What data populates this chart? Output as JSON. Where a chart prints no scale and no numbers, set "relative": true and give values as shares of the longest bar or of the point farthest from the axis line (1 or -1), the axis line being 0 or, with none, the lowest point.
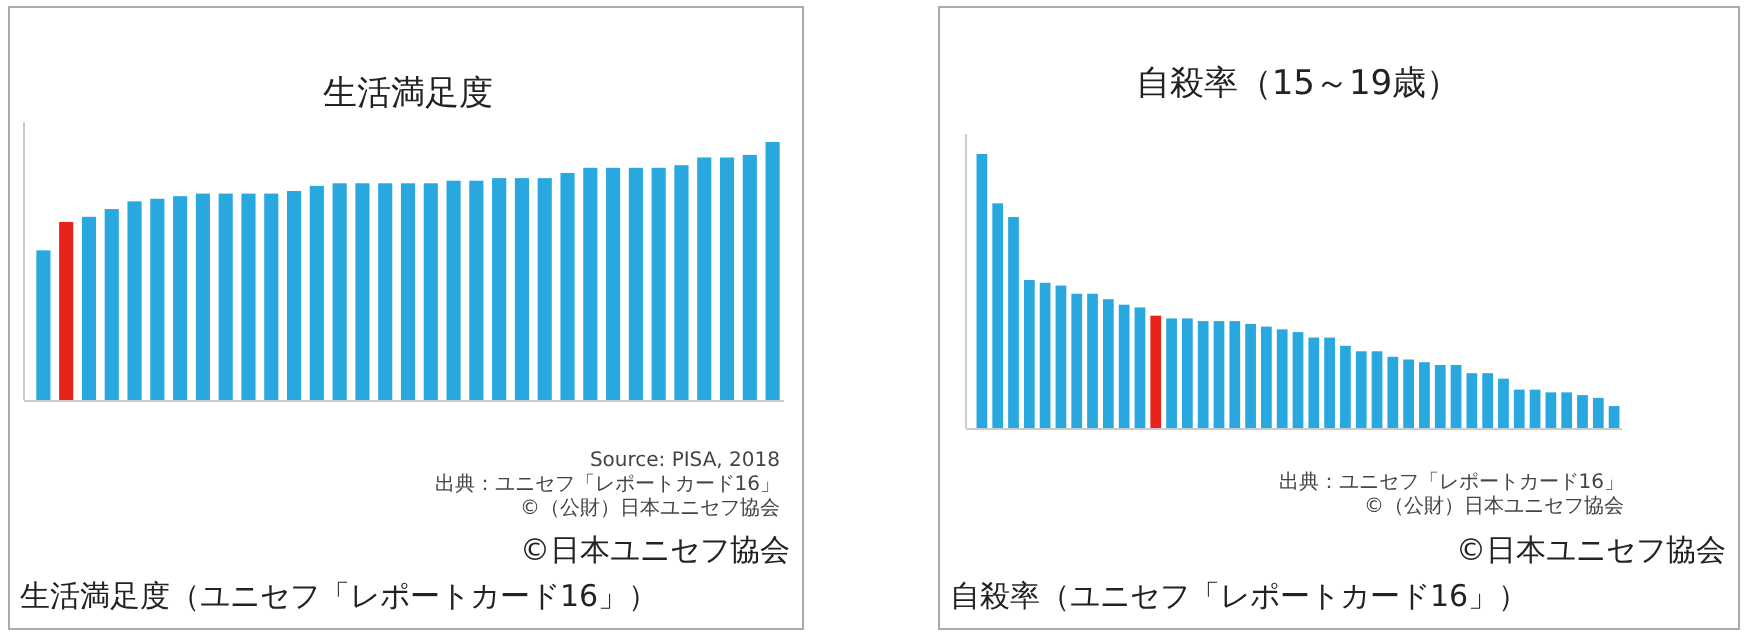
{
  "chart_data": [
    {
      "type": "bar",
      "title": "生活満足度",
      "relative": true,
      "categories": [
        null,
        null,
        null,
        null,
        null,
        null,
        null,
        null,
        null,
        null,
        null,
        null,
        null,
        null,
        null,
        null,
        null,
        null,
        null,
        null,
        null,
        null,
        null,
        null,
        null,
        null,
        null,
        null,
        null,
        null,
        null,
        null,
        null
      ],
      "values": [
        0.58,
        0.69,
        0.71,
        0.74,
        0.77,
        0.78,
        0.79,
        0.8,
        0.8,
        0.8,
        0.8,
        0.81,
        0.83,
        0.84,
        0.84,
        0.84,
        0.84,
        0.84,
        0.85,
        0.85,
        0.86,
        0.86,
        0.86,
        0.88,
        0.9,
        0.9,
        0.9,
        0.9,
        0.91,
        0.94,
        0.94,
        0.95,
        1.0
      ],
      "colors": [
        "#29a8df",
        "#e8231b",
        "#29a8df",
        "#29a8df",
        "#29a8df",
        "#29a8df",
        "#29a8df",
        "#29a8df",
        "#29a8df",
        "#29a8df",
        "#29a8df",
        "#29a8df",
        "#29a8df",
        "#29a8df",
        "#29a8df",
        "#29a8df",
        "#29a8df",
        "#29a8df",
        "#29a8df",
        "#29a8df",
        "#29a8df",
        "#29a8df",
        "#29a8df",
        "#29a8df",
        "#29a8df",
        "#29a8df",
        "#29a8df",
        "#29a8df",
        "#29a8df",
        "#29a8df",
        "#29a8df",
        "#29a8df",
        "#29a8df"
      ],
      "annotations": [
        "Source: PISA, 2018",
        "出典：ユニセフ「レポートカード16」",
        "©（公財）日本ユニセフ協会",
        "©日本ユニセフ協会",
        "生活満足度（ユニセフ「レポートカード16」）"
      ]
    },
    {
      "type": "bar",
      "title": "自殺率（15～19歳）",
      "relative": true,
      "categories": [
        null,
        null,
        null,
        null,
        null,
        null,
        null,
        null,
        null,
        null,
        null,
        null,
        null,
        null,
        null,
        null,
        null,
        null,
        null,
        null,
        null,
        null,
        null,
        null,
        null,
        null,
        null,
        null,
        null,
        null,
        null,
        null,
        null,
        null,
        null,
        null,
        null,
        null,
        null,
        null,
        null
      ],
      "values": [
        1.0,
        0.82,
        0.77,
        0.54,
        0.53,
        0.52,
        0.49,
        0.49,
        0.47,
        0.45,
        0.44,
        0.41,
        0.4,
        0.4,
        0.39,
        0.39,
        0.39,
        0.38,
        0.37,
        0.36,
        0.35,
        0.33,
        0.33,
        0.3,
        0.28,
        0.28,
        0.26,
        0.25,
        0.24,
        0.23,
        0.23,
        0.2,
        0.2,
        0.18,
        0.14,
        0.14,
        0.13,
        0.13,
        0.12,
        0.11,
        0.08
      ],
      "colors": [
        "#29a8df",
        "#29a8df",
        "#29a8df",
        "#29a8df",
        "#29a8df",
        "#29a8df",
        "#29a8df",
        "#29a8df",
        "#29a8df",
        "#29a8df",
        "#29a8df",
        "#e8231b",
        "#29a8df",
        "#29a8df",
        "#29a8df",
        "#29a8df",
        "#29a8df",
        "#29a8df",
        "#29a8df",
        "#29a8df",
        "#29a8df",
        "#29a8df",
        "#29a8df",
        "#29a8df",
        "#29a8df",
        "#29a8df",
        "#29a8df",
        "#29a8df",
        "#29a8df",
        "#29a8df",
        "#29a8df",
        "#29a8df",
        "#29a8df",
        "#29a8df",
        "#29a8df",
        "#29a8df",
        "#29a8df",
        "#29a8df",
        "#29a8df",
        "#29a8df",
        "#29a8df"
      ],
      "annotations": [
        "出典：ユニセフ「レポートカード16」",
        "©（公財）日本ユニセフ協会",
        "©日本ユニセフ協会",
        "自殺率（ユニセフ「レポートカード16」）"
      ]
    }
  ]
}
